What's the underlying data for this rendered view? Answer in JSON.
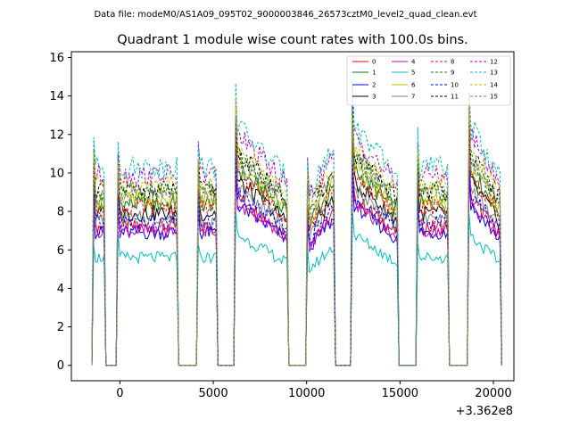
{
  "suptitle": "Data file: modeM0/AS1A09_095T02_9000003846_26573cztM0_level2_quad_clean.evt",
  "chart_data": {
    "type": "line",
    "title": "Quadrant 1 module wise count rates with 100.0s bins.",
    "xlabel": "",
    "ylabel": "",
    "x_offset_label": "+3.362e8",
    "xlim": [
      -2600,
      21100
    ],
    "ylim": [
      -0.8,
      16.3
    ],
    "xticks": [
      0,
      5000,
      10000,
      15000,
      20000
    ],
    "xtick_labels": [
      "0",
      "5000",
      "10000",
      "15000",
      "20000"
    ],
    "yticks": [
      0,
      2,
      4,
      6,
      8,
      10,
      12,
      14,
      16
    ],
    "ytick_labels": [
      "0",
      "2",
      "4",
      "6",
      "8",
      "10",
      "12",
      "14",
      "16"
    ],
    "legend_position": "top-right",
    "segments": [
      {
        "start": -1400,
        "end": -850,
        "shape": "flat"
      },
      {
        "start": -100,
        "end": 3050,
        "shape": "flat"
      },
      {
        "start": 4200,
        "end": 5150,
        "shape": "flat"
      },
      {
        "start": 6200,
        "end": 8950,
        "shape": "decline"
      },
      {
        "start": 10050,
        "end": 11450,
        "shape": "rise"
      },
      {
        "start": 12450,
        "end": 14850,
        "shape": "decline"
      },
      {
        "start": 15950,
        "end": 17550,
        "shape": "flat"
      },
      {
        "start": 18700,
        "end": 20350,
        "shape": "decline"
      }
    ],
    "series": [
      {
        "name": "0",
        "color": "#ff0000",
        "dash": "solid",
        "level": 7.2
      },
      {
        "name": "1",
        "color": "#008000",
        "dash": "solid",
        "level": 8.4
      },
      {
        "name": "2",
        "color": "#0000ff",
        "dash": "solid",
        "level": 6.9
      },
      {
        "name": "3",
        "color": "#000000",
        "dash": "solid",
        "level": 7.9
      },
      {
        "name": "4",
        "color": "#bf00bf",
        "dash": "solid",
        "level": 7.0
      },
      {
        "name": "5",
        "color": "#00bfbf",
        "dash": "solid",
        "level": 5.6
      },
      {
        "name": "6",
        "color": "#bfbf00",
        "dash": "solid",
        "level": 8.6
      },
      {
        "name": "7",
        "color": "#808080",
        "dash": "solid",
        "level": 7.6
      },
      {
        "name": "8",
        "color": "#ff0000",
        "dash": "dashed",
        "level": 8.2
      },
      {
        "name": "9",
        "color": "#008000",
        "dash": "dashed",
        "level": 9.0
      },
      {
        "name": "10",
        "color": "#0000ff",
        "dash": "dashed",
        "level": 7.4
      },
      {
        "name": "11",
        "color": "#000000",
        "dash": "dashed",
        "level": 9.1
      },
      {
        "name": "12",
        "color": "#bf00bf",
        "dash": "dashed",
        "level": 9.9
      },
      {
        "name": "13",
        "color": "#00bfbf",
        "dash": "dashed",
        "level": 10.3
      },
      {
        "name": "14",
        "color": "#bfbf00",
        "dash": "dashed",
        "level": 9.4
      },
      {
        "name": "15",
        "color": "#808080",
        "dash": "dashed",
        "level": 8.8
      }
    ]
  }
}
